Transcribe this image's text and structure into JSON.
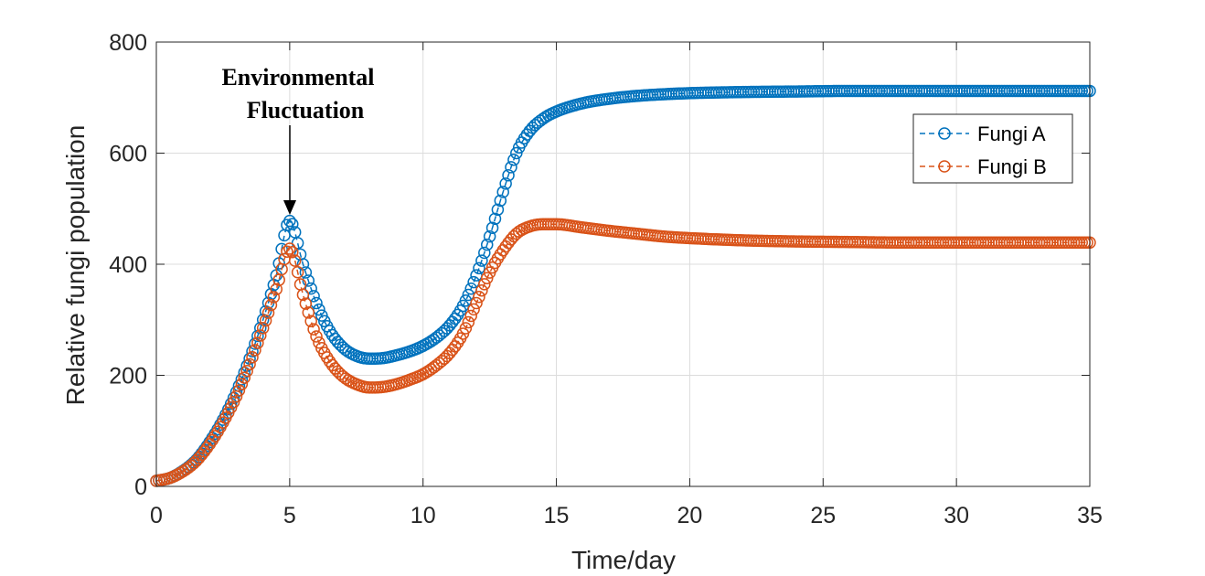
{
  "chart_data": {
    "type": "line",
    "xlabel": "Time/day",
    "ylabel": "Relative fungi population",
    "xlim": [
      0,
      35
    ],
    "ylim": [
      0,
      800
    ],
    "xticks": [
      0,
      5,
      10,
      15,
      20,
      25,
      30,
      35
    ],
    "yticks": [
      0,
      200,
      400,
      600,
      800
    ],
    "grid": true,
    "legend_position": "top-right",
    "marker": "open-circle",
    "line_style": "dashed",
    "annotation": {
      "lines": [
        "Environmental",
        "Fluctuation"
      ],
      "target_x": 5,
      "target_y": 490
    },
    "series": [
      {
        "name": "Fungi A",
        "color": "#0072BD",
        "points": [
          [
            0,
            10
          ],
          [
            0.5,
            15
          ],
          [
            1,
            28
          ],
          [
            1.5,
            48
          ],
          [
            2,
            80
          ],
          [
            2.5,
            120
          ],
          [
            3,
            170
          ],
          [
            3.5,
            230
          ],
          [
            4,
            300
          ],
          [
            4.5,
            380
          ],
          [
            5,
            478
          ],
          [
            5.5,
            400
          ],
          [
            6,
            330
          ],
          [
            6.5,
            280
          ],
          [
            7,
            250
          ],
          [
            7.5,
            235
          ],
          [
            8,
            230
          ],
          [
            8.5,
            231
          ],
          [
            9,
            236
          ],
          [
            9.5,
            243
          ],
          [
            10,
            253
          ],
          [
            10.5,
            268
          ],
          [
            11,
            290
          ],
          [
            11.5,
            325
          ],
          [
            12,
            380
          ],
          [
            12.5,
            450
          ],
          [
            13,
            530
          ],
          [
            13.5,
            600
          ],
          [
            14,
            640
          ],
          [
            14.5,
            662
          ],
          [
            15,
            675
          ],
          [
            16,
            690
          ],
          [
            17,
            698
          ],
          [
            18,
            703
          ],
          [
            19,
            706
          ],
          [
            20,
            708
          ],
          [
            22,
            710
          ],
          [
            24,
            711
          ],
          [
            26,
            712
          ],
          [
            28,
            712
          ],
          [
            30,
            712
          ],
          [
            32,
            712
          ],
          [
            34,
            712
          ],
          [
            35,
            712
          ]
        ]
      },
      {
        "name": "Fungi B",
        "color": "#D95319",
        "points": [
          [
            0,
            10
          ],
          [
            0.5,
            15
          ],
          [
            1,
            27
          ],
          [
            1.5,
            46
          ],
          [
            2,
            76
          ],
          [
            2.5,
            115
          ],
          [
            3,
            162
          ],
          [
            3.5,
            220
          ],
          [
            4,
            285
          ],
          [
            4.5,
            355
          ],
          [
            5,
            428
          ],
          [
            5.5,
            345
          ],
          [
            6,
            270
          ],
          [
            6.5,
            225
          ],
          [
            7,
            198
          ],
          [
            7.5,
            184
          ],
          [
            8,
            178
          ],
          [
            8.5,
            179
          ],
          [
            9,
            184
          ],
          [
            9.5,
            192
          ],
          [
            10,
            202
          ],
          [
            10.5,
            218
          ],
          [
            11,
            240
          ],
          [
            11.5,
            275
          ],
          [
            12,
            330
          ],
          [
            12.5,
            385
          ],
          [
            13,
            425
          ],
          [
            13.5,
            455
          ],
          [
            14,
            468
          ],
          [
            14.5,
            472
          ],
          [
            15,
            472
          ],
          [
            16,
            466
          ],
          [
            17,
            460
          ],
          [
            18,
            455
          ],
          [
            19,
            450
          ],
          [
            20,
            447
          ],
          [
            22,
            443
          ],
          [
            24,
            441
          ],
          [
            26,
            440
          ],
          [
            28,
            439
          ],
          [
            30,
            439
          ],
          [
            32,
            439
          ],
          [
            34,
            439
          ],
          [
            35,
            439
          ]
        ]
      }
    ]
  }
}
